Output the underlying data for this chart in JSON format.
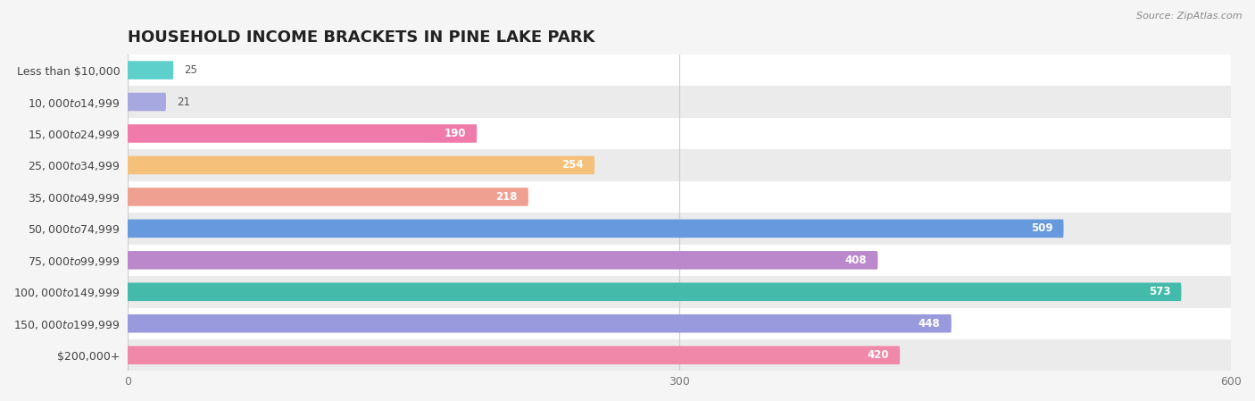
{
  "title": "HOUSEHOLD INCOME BRACKETS IN PINE LAKE PARK",
  "source": "Source: ZipAtlas.com",
  "categories": [
    "Less than $10,000",
    "$10,000 to $14,999",
    "$15,000 to $24,999",
    "$25,000 to $34,999",
    "$35,000 to $49,999",
    "$50,000 to $74,999",
    "$75,000 to $99,999",
    "$100,000 to $149,999",
    "$150,000 to $199,999",
    "$200,000+"
  ],
  "values": [
    25,
    21,
    190,
    254,
    218,
    509,
    408,
    573,
    448,
    420
  ],
  "bar_colors": [
    "#5dd0cc",
    "#a8a8e0",
    "#f07aaa",
    "#f5c07a",
    "#f0a090",
    "#6699dd",
    "#bb88cc",
    "#44bbaa",
    "#9999dd",
    "#f088aa"
  ],
  "background_color": "#f5f5f5",
  "xlim": [
    0,
    600
  ],
  "xticks": [
    0,
    300,
    600
  ],
  "title_fontsize": 13,
  "label_fontsize": 9,
  "value_fontsize": 8.5,
  "bar_height": 0.58
}
